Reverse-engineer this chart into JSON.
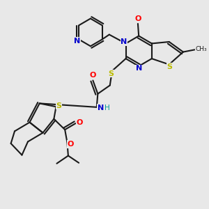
{
  "bg_color": "#e8e8e8",
  "bond_color": "#1a1a1a",
  "atom_colors": {
    "N": "#0000cc",
    "S": "#bbbb00",
    "O": "#ff0000",
    "H": "#009999",
    "C": "#1a1a1a"
  },
  "figsize": [
    3.0,
    3.0
  ],
  "dpi": 100
}
